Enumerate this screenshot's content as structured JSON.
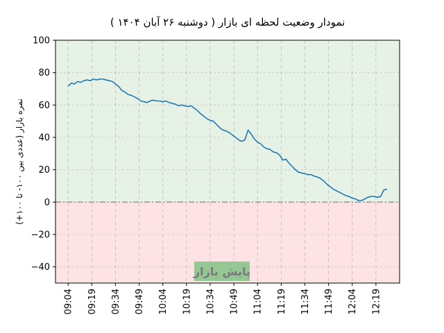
{
  "chart_data": {
    "type": "line",
    "title": "نمودار وضعیت لحظه ای بازار   ( دوشنبه ۲۶ آبان ۱۴۰۴ )",
    "ylabel": "نمره بازار (عددی بین ۱۰۰- تا ۱۰۰+)",
    "xlabel": "",
    "ylim": [
      -50,
      100
    ],
    "yticks": [
      -40,
      -20,
      0,
      20,
      40,
      60,
      80,
      100
    ],
    "ytick_labels": [
      "−40",
      "−20",
      "0",
      "20",
      "40",
      "60",
      "80",
      "100"
    ],
    "xticks": [
      "09:04",
      "09:19",
      "09:34",
      "09:49",
      "10:04",
      "10:19",
      "10:34",
      "10:49",
      "11:04",
      "11:19",
      "11:34",
      "11:49",
      "12:04",
      "12:19"
    ],
    "grid": true,
    "zero_line": true,
    "positive_region_color": "#e6f2e6",
    "negative_region_color": "#fde3e3",
    "line_color": "#1f77b4",
    "annotation": "پایش بازار",
    "series": [
      {
        "values": [
          [
            0,
            71.5
          ],
          [
            2,
            73.5
          ],
          [
            4,
            73
          ],
          [
            6,
            74.5
          ],
          [
            8,
            74
          ],
          [
            10,
            75
          ],
          [
            12,
            75.5
          ],
          [
            14,
            75
          ],
          [
            16,
            76
          ],
          [
            18,
            75.5
          ],
          [
            20,
            76
          ],
          [
            22,
            76
          ],
          [
            24,
            75.5
          ],
          [
            26,
            75
          ],
          [
            28,
            74.5
          ],
          [
            30,
            73
          ],
          [
            32,
            71.5
          ],
          [
            34,
            69
          ],
          [
            36,
            68
          ],
          [
            38,
            66.5
          ],
          [
            40,
            66
          ],
          [
            42,
            65
          ],
          [
            44,
            64
          ],
          [
            46,
            62.5
          ],
          [
            48,
            62
          ],
          [
            50,
            61.5
          ],
          [
            52,
            62.5
          ],
          [
            54,
            63
          ],
          [
            56,
            62.5
          ],
          [
            58,
            62.5
          ],
          [
            60,
            62
          ],
          [
            62,
            62.5
          ],
          [
            64,
            61.5
          ],
          [
            66,
            61
          ],
          [
            68,
            60.5
          ],
          [
            70,
            59.5
          ],
          [
            72,
            60
          ],
          [
            74,
            59.5
          ],
          [
            76,
            59
          ],
          [
            78,
            59.5
          ],
          [
            80,
            58
          ],
          [
            82,
            56.5
          ],
          [
            84,
            54.5
          ],
          [
            86,
            53
          ],
          [
            88,
            51.5
          ],
          [
            90,
            50.5
          ],
          [
            92,
            50
          ],
          [
            94,
            48
          ],
          [
            96,
            46
          ],
          [
            98,
            44.5
          ],
          [
            100,
            44
          ],
          [
            102,
            43
          ],
          [
            104,
            41.5
          ],
          [
            106,
            40
          ],
          [
            108,
            38.5
          ],
          [
            110,
            37.5
          ],
          [
            112,
            38.5
          ],
          [
            114,
            44.5
          ],
          [
            116,
            42
          ],
          [
            118,
            39
          ],
          [
            120,
            37
          ],
          [
            122,
            36
          ],
          [
            124,
            34
          ],
          [
            126,
            33
          ],
          [
            128,
            32.5
          ],
          [
            130,
            31
          ],
          [
            132,
            30.5
          ],
          [
            134,
            29
          ],
          [
            136,
            26
          ],
          [
            138,
            26.5
          ],
          [
            140,
            24
          ],
          [
            142,
            22
          ],
          [
            144,
            20
          ],
          [
            146,
            18.5
          ],
          [
            148,
            18
          ],
          [
            150,
            17.5
          ],
          [
            152,
            17
          ],
          [
            154,
            17
          ],
          [
            156,
            16
          ],
          [
            158,
            15.5
          ],
          [
            160,
            14.5
          ],
          [
            162,
            13
          ],
          [
            164,
            11
          ],
          [
            166,
            9.5
          ],
          [
            168,
            8
          ],
          [
            170,
            7
          ],
          [
            172,
            6
          ],
          [
            174,
            5
          ],
          [
            176,
            4
          ],
          [
            178,
            3.5
          ],
          [
            180,
            2.5
          ],
          [
            182,
            2
          ],
          [
            184,
            1
          ],
          [
            186,
            1
          ],
          [
            188,
            2
          ],
          [
            190,
            3
          ],
          [
            192,
            3.5
          ],
          [
            194,
            3.5
          ],
          [
            196,
            3
          ],
          [
            198,
            3.5
          ],
          [
            200,
            7.5
          ],
          [
            202,
            8
          ]
        ]
      }
    ]
  }
}
